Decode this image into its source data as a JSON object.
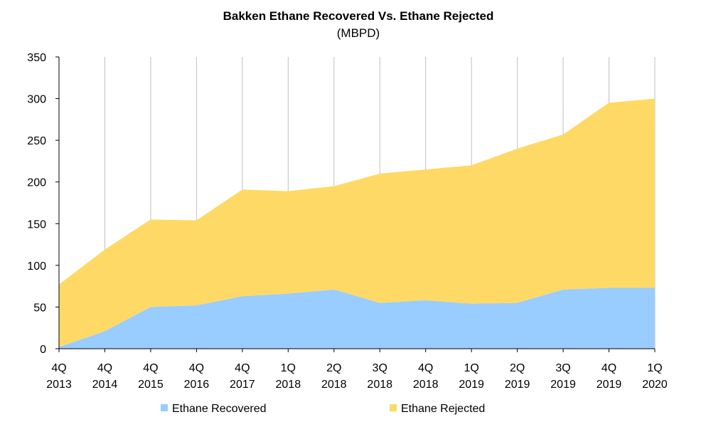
{
  "chart_data": {
    "type": "area",
    "stacked": true,
    "title": "Bakken Ethane Recovered Vs. Ethane Rejected",
    "subtitle": "(MBPD)",
    "xlabel": "",
    "ylabel": "",
    "ylim": [
      0,
      350
    ],
    "yticks": [
      "0",
      "50",
      "100",
      "150",
      "200",
      "250",
      "300",
      "350"
    ],
    "categories": [
      [
        "4Q",
        "2013"
      ],
      [
        "4Q",
        "2014"
      ],
      [
        "4Q",
        "2015"
      ],
      [
        "4Q",
        "2016"
      ],
      [
        "4Q",
        "2017"
      ],
      [
        "1Q",
        "2018"
      ],
      [
        "2Q",
        "2018"
      ],
      [
        "3Q",
        "2018"
      ],
      [
        "4Q",
        "2018"
      ],
      [
        "1Q",
        "2019"
      ],
      [
        "2Q",
        "2019"
      ],
      [
        "3Q",
        "2019"
      ],
      [
        "4Q",
        "2019"
      ],
      [
        "1Q",
        "2020"
      ]
    ],
    "series": [
      {
        "name": "Ethane Recovered",
        "color": "#99ccff",
        "values": [
          2,
          21,
          50,
          52,
          63,
          66,
          71,
          55,
          58,
          54,
          55,
          71,
          73,
          73
        ]
      },
      {
        "name": "Ethane Rejected",
        "color": "#ffd966",
        "values": [
          75,
          98,
          105,
          102,
          128,
          123,
          124,
          155,
          157,
          166,
          185,
          186,
          222,
          227
        ]
      }
    ],
    "grid": "vertical",
    "legend": "bottom"
  }
}
